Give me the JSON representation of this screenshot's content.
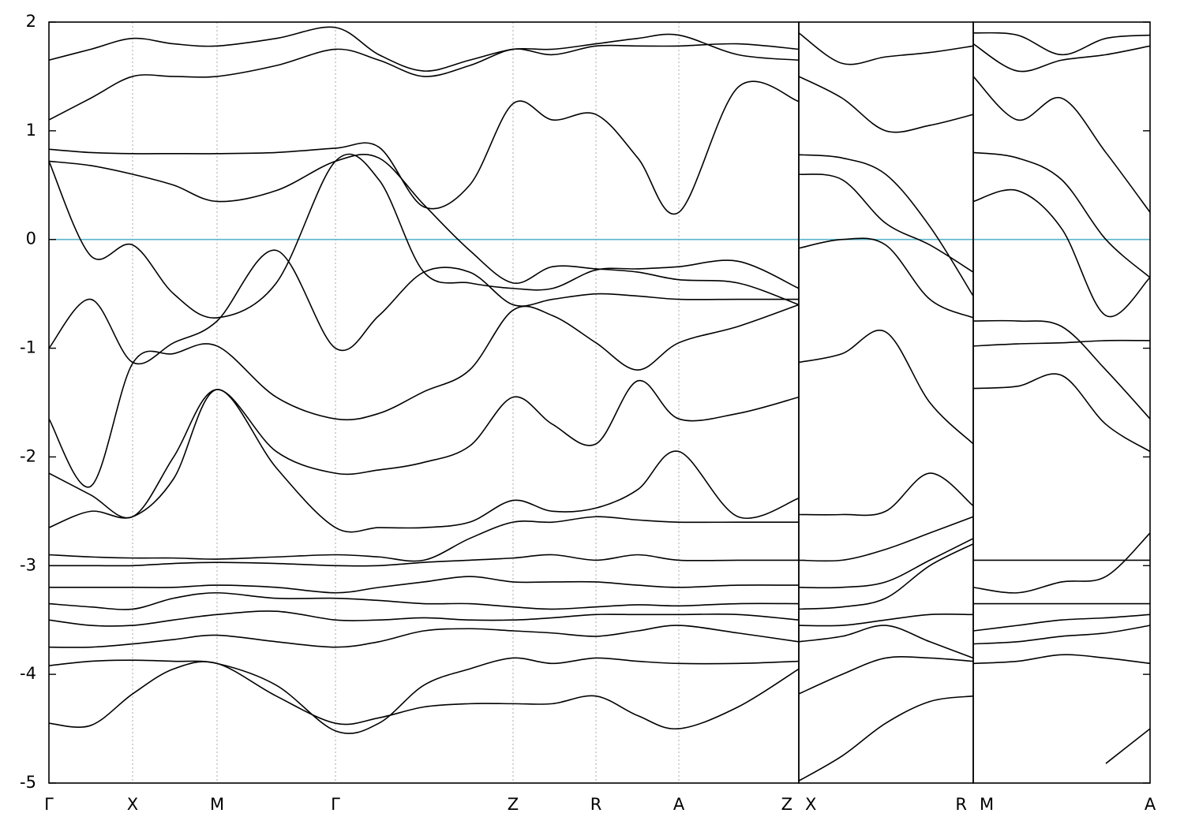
{
  "chart_data": [
    {
      "type": "line",
      "color": "#000000",
      "grid": true,
      "hline": {
        "value": 0,
        "color": "#5ab4c8"
      },
      "xlim": [
        0,
        9.5
      ],
      "ylim": [
        -5,
        2
      ],
      "yticks": [
        -5,
        -4,
        -3,
        -2,
        -1,
        0,
        1,
        2
      ],
      "xticks": [
        {
          "value": 0,
          "label": "Γ"
        },
        {
          "value": 1.06,
          "label": "X"
        },
        {
          "value": 2.13,
          "label": "M"
        },
        {
          "value": 3.63,
          "label": "Γ"
        },
        {
          "value": 5.88,
          "label": "Z"
        },
        {
          "value": 6.93,
          "label": "R"
        },
        {
          "value": 7.98,
          "label": "A"
        },
        {
          "value": 9.5,
          "label": "Z"
        }
      ],
      "x": [
        0,
        0.53,
        1.06,
        1.58,
        2.13,
        2.88,
        3.63,
        4.18,
        4.75,
        5.33,
        5.88,
        6.38,
        6.93,
        7.46,
        7.98,
        8.73,
        9.5
      ],
      "series": [
        {
          "values": [
            -4.45,
            -4.47,
            -4.18,
            -3.95,
            -3.9,
            -4.2,
            -4.45,
            -4.4,
            -4.3,
            -4.27,
            -4.27,
            -4.27,
            -4.2,
            -4.38,
            -4.5,
            -4.3,
            -3.95
          ]
        },
        {
          "values": [
            -3.92,
            -3.88,
            -3.87,
            -3.88,
            -3.9,
            -4.1,
            -4.52,
            -4.45,
            -4.1,
            -3.95,
            -3.85,
            -3.9,
            -3.85,
            -3.88,
            -3.9,
            -3.9,
            -3.88
          ]
        },
        {
          "values": [
            -3.75,
            -3.75,
            -3.72,
            -3.68,
            -3.64,
            -3.7,
            -3.75,
            -3.7,
            -3.6,
            -3.58,
            -3.6,
            -3.62,
            -3.65,
            -3.6,
            -3.55,
            -3.62,
            -3.7
          ]
        },
        {
          "values": [
            -3.5,
            -3.55,
            -3.55,
            -3.5,
            -3.45,
            -3.42,
            -3.5,
            -3.5,
            -3.48,
            -3.5,
            -3.5,
            -3.48,
            -3.45,
            -3.45,
            -3.45,
            -3.45,
            -3.5
          ]
        },
        {
          "values": [
            -3.35,
            -3.38,
            -3.4,
            -3.3,
            -3.25,
            -3.3,
            -3.3,
            -3.32,
            -3.35,
            -3.35,
            -3.38,
            -3.4,
            -3.38,
            -3.36,
            -3.37,
            -3.35,
            -3.35
          ]
        },
        {
          "values": [
            -3.2,
            -3.2,
            -3.2,
            -3.2,
            -3.18,
            -3.2,
            -3.25,
            -3.2,
            -3.15,
            -3.1,
            -3.15,
            -3.15,
            -3.15,
            -3.18,
            -3.2,
            -3.18,
            -3.18
          ]
        },
        {
          "values": [
            -3.0,
            -3.0,
            -3.0,
            -2.98,
            -2.97,
            -2.98,
            -3.0,
            -3.0,
            -2.97,
            -2.95,
            -2.93,
            -2.9,
            -2.95,
            -2.9,
            -2.95,
            -2.95,
            -2.95
          ]
        },
        {
          "values": [
            -2.9,
            -2.92,
            -2.93,
            -2.93,
            -2.94,
            -2.92,
            -2.9,
            -2.92,
            -2.95,
            -2.75,
            -2.6,
            -2.6,
            -2.55,
            -2.58,
            -2.6,
            -2.6,
            -2.6
          ]
        },
        {
          "values": [
            -2.65,
            -2.5,
            -2.55,
            -2.2,
            -1.38,
            -2.1,
            -2.65,
            -2.65,
            -2.65,
            -2.6,
            -2.4,
            -2.5,
            -2.47,
            -2.3,
            -1.95,
            -2.55,
            -2.38
          ]
        },
        {
          "values": [
            -2.15,
            -2.35,
            -2.55,
            -2.0,
            -1.38,
            -1.95,
            -2.15,
            -2.12,
            -2.05,
            -1.9,
            -1.45,
            -1.7,
            -1.88,
            -1.3,
            -1.65,
            -1.6,
            -1.45
          ]
        },
        {
          "values": [
            -1.65,
            -2.27,
            -1.14,
            -1.05,
            -0.98,
            -1.45,
            -1.65,
            -1.6,
            -1.4,
            -1.2,
            -0.65,
            -0.7,
            -0.95,
            -1.2,
            -0.95,
            -0.8,
            -0.6
          ]
        },
        {
          "values": [
            -1.0,
            -0.55,
            -1.13,
            -0.95,
            -0.75,
            -0.1,
            -1.0,
            -0.7,
            -0.3,
            -0.3,
            -0.6,
            -0.55,
            -0.5,
            -0.52,
            -0.55,
            -0.55,
            -0.55
          ]
        },
        {
          "values": [
            0.72,
            -0.15,
            -0.05,
            -0.5,
            -0.72,
            -0.4,
            0.72,
            0.55,
            -0.3,
            -0.4,
            -0.45,
            -0.45,
            -0.28,
            -0.27,
            -0.25,
            -0.2,
            -0.45
          ]
        },
        {
          "values": [
            0.72,
            0.68,
            0.6,
            0.5,
            0.35,
            0.45,
            0.72,
            0.75,
            0.32,
            -0.1,
            -0.4,
            -0.25,
            -0.27,
            -0.3,
            -0.37,
            -0.4,
            -0.6
          ]
        },
        {
          "values": [
            0.83,
            0.8,
            0.79,
            0.79,
            0.79,
            0.8,
            0.84,
            0.85,
            0.3,
            0.5,
            1.25,
            1.1,
            1.15,
            0.75,
            0.25,
            1.4,
            1.27
          ]
        },
        {
          "values": [
            1.1,
            1.3,
            1.5,
            1.5,
            1.5,
            1.6,
            1.75,
            1.65,
            1.5,
            1.6,
            1.75,
            1.7,
            1.78,
            1.78,
            1.78,
            1.8,
            1.75
          ]
        },
        {
          "values": [
            1.65,
            1.75,
            1.85,
            1.8,
            1.78,
            1.85,
            1.95,
            1.7,
            1.55,
            1.65,
            1.75,
            1.75,
            1.8,
            1.85,
            1.88,
            1.7,
            1.65
          ]
        }
      ]
    },
    {
      "type": "line",
      "color": "#000000",
      "grid": false,
      "hline": {
        "value": 0,
        "color": "#5ab4c8"
      },
      "xlim": [
        9.5,
        11.71
      ],
      "ylim": [
        -5,
        2
      ],
      "xticks": [
        {
          "value": 9.5,
          "label": "X"
        },
        {
          "value": 11.71,
          "label": "R"
        }
      ],
      "x": [
        9.5,
        10.05,
        10.6,
        11.16,
        11.71
      ],
      "series": [
        {
          "values": [
            -4.98,
            -4.75,
            -4.45,
            -4.25,
            -4.2
          ]
        },
        {
          "values": [
            -4.18,
            -4.0,
            -3.85,
            -3.85,
            -3.88
          ]
        },
        {
          "values": [
            -3.7,
            -3.65,
            -3.55,
            -3.7,
            -3.85
          ]
        },
        {
          "values": [
            -3.55,
            -3.55,
            -3.5,
            -3.45,
            -3.45
          ]
        },
        {
          "values": [
            -3.4,
            -3.38,
            -3.3,
            -3.0,
            -2.8
          ]
        },
        {
          "values": [
            -3.2,
            -3.2,
            -3.15,
            -2.95,
            -2.75
          ]
        },
        {
          "values": [
            -2.95,
            -2.95,
            -2.85,
            -2.7,
            -2.55
          ]
        },
        {
          "values": [
            -2.53,
            -2.53,
            -2.5,
            -2.15,
            -2.45
          ]
        },
        {
          "values": [
            -1.13,
            -1.05,
            -0.85,
            -1.5,
            -1.88
          ]
        },
        {
          "values": [
            -0.08,
            0.0,
            -0.05,
            -0.55,
            -0.72
          ]
        },
        {
          "values": [
            0.6,
            0.55,
            0.15,
            -0.05,
            -0.3
          ]
        },
        {
          "values": [
            0.78,
            0.75,
            0.6,
            0.12,
            -0.52
          ]
        },
        {
          "values": [
            1.5,
            1.3,
            1.0,
            1.05,
            1.15
          ]
        },
        {
          "values": [
            1.9,
            1.62,
            1.68,
            1.72,
            1.78
          ]
        }
      ]
    },
    {
      "type": "line",
      "color": "#000000",
      "grid": false,
      "hline": {
        "value": 0,
        "color": "#5ab4c8"
      },
      "xlim": [
        11.71,
        13.95
      ],
      "ylim": [
        -5,
        2
      ],
      "xticks": [
        {
          "value": 11.71,
          "label": "M"
        },
        {
          "value": 13.95,
          "label": "A"
        }
      ],
      "x": [
        11.71,
        12.27,
        12.83,
        13.39,
        13.95
      ],
      "series": [
        {
          "values": [
            null,
            null,
            null,
            -4.82,
            -4.5
          ]
        },
        {
          "values": [
            -3.9,
            -3.88,
            -3.82,
            -3.85,
            -3.9
          ]
        },
        {
          "values": [
            -3.72,
            -3.7,
            -3.65,
            -3.62,
            -3.55
          ]
        },
        {
          "values": [
            -3.6,
            -3.55,
            -3.5,
            -3.48,
            -3.45
          ]
        },
        {
          "values": [
            -3.35,
            -3.35,
            -3.35,
            -3.35,
            -3.35
          ]
        },
        {
          "values": [
            -3.2,
            -3.25,
            -3.15,
            -3.1,
            -2.7
          ]
        },
        {
          "values": [
            -2.95,
            -2.95,
            -2.95,
            -2.95,
            -2.95
          ]
        },
        {
          "values": [
            -1.37,
            -1.35,
            -1.25,
            -1.7,
            -1.95
          ]
        },
        {
          "values": [
            -0.98,
            -0.96,
            -0.95,
            -0.93,
            -0.93
          ]
        },
        {
          "values": [
            -0.75,
            -0.75,
            -0.8,
            -1.2,
            -1.65
          ]
        },
        {
          "values": [
            0.35,
            0.45,
            0.1,
            -0.7,
            -0.35
          ]
        },
        {
          "values": [
            0.8,
            0.75,
            0.55,
            0.0,
            -0.35
          ]
        },
        {
          "values": [
            1.5,
            1.1,
            1.3,
            0.8,
            0.25
          ]
        },
        {
          "values": [
            1.8,
            1.55,
            1.65,
            1.7,
            1.78
          ]
        },
        {
          "values": [
            1.9,
            1.88,
            1.7,
            1.85,
            1.88
          ]
        }
      ]
    }
  ]
}
